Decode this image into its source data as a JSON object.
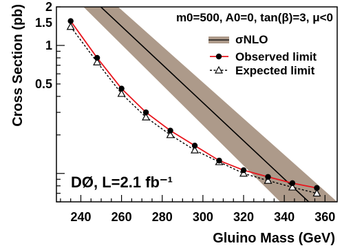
{
  "chart_data": {
    "type": "line",
    "xlabel": "Gluino Mass (GeV)",
    "ylabel": "Cross Section (pb)",
    "xlim": [
      228,
      366
    ],
    "ylim": [
      0.06,
      2.0
    ],
    "yscale": "log",
    "grid": false,
    "legend_position": "top-right",
    "x_ticks": [
      240,
      260,
      280,
      300,
      320,
      340,
      360
    ],
    "y_ticks": [
      0.5,
      1,
      1.5,
      2
    ],
    "x_tick_labels": [
      "240",
      "260",
      "280",
      "300",
      "320",
      "340",
      "360"
    ],
    "y_tick_labels": [
      "0.5",
      "1",
      "1.5",
      "2"
    ],
    "parameters_text": "m0=500, A0=0, tan(β)=3, μ<0",
    "experiment_text": "DØ, L=2.1 fb⁻¹",
    "series": [
      {
        "name": "Observed limit",
        "color": "#e8141c",
        "marker": "filled-circle",
        "x": [
          235,
          248,
          260,
          272,
          284,
          296,
          308,
          320,
          332,
          344,
          356
        ],
        "y": [
          1.55,
          0.8,
          0.46,
          0.3,
          0.216,
          0.165,
          0.126,
          0.106,
          0.094,
          0.084,
          0.077
        ]
      },
      {
        "name": "Expected limit",
        "color": "#000000",
        "marker": "open-triangle",
        "x": [
          235,
          248,
          260,
          272,
          284,
          296,
          308,
          320,
          332,
          344,
          356
        ],
        "y": [
          1.4,
          0.74,
          0.42,
          0.275,
          0.2,
          0.152,
          0.123,
          0.1,
          0.088,
          0.078,
          0.07
        ]
      }
    ],
    "theory_band": {
      "name": "σNLO",
      "color": "#ad9a8a",
      "central": {
        "x": [
          240,
          352
        ],
        "y": [
          2.8,
          0.06
        ]
      },
      "upper": {
        "x": [
          248,
          366
        ],
        "y": [
          2.8,
          0.06
        ]
      },
      "lower": {
        "x": [
          232,
          338
        ],
        "y": [
          2.8,
          0.06
        ]
      }
    }
  }
}
